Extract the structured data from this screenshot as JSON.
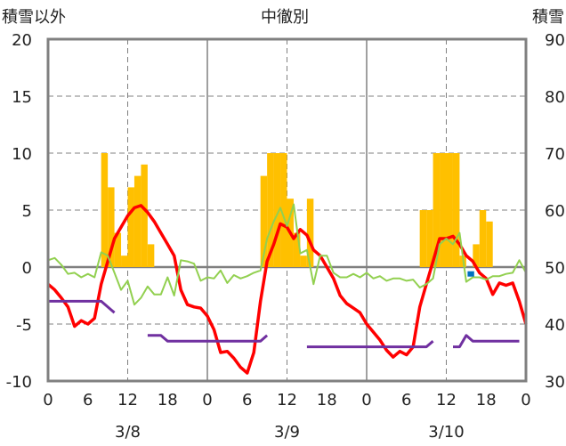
{
  "chart_data": {
    "type": "bar",
    "header": {
      "left": "積雪以外",
      "center": "中徹別",
      "right": "積雪"
    },
    "y_left": {
      "min": -10,
      "max": 20,
      "ticks": [
        "-10",
        "-5",
        "0",
        "5",
        "10",
        "15",
        "20"
      ]
    },
    "y_right": {
      "min": 30,
      "max": 90,
      "ticks": [
        "30",
        "40",
        "50",
        "60",
        "70",
        "80",
        "90"
      ]
    },
    "x_range": [
      0,
      72
    ],
    "x_ticks": [
      "0",
      "6",
      "12",
      "18",
      "0",
      "6",
      "12",
      "18",
      "0",
      "6",
      "12",
      "18",
      "0"
    ],
    "dates": [
      "3/8",
      "3/9",
      "3/10"
    ],
    "colors": {
      "bars": "#ffc000",
      "red": "#ff0000",
      "green": "#92d050",
      "purple": "#7030a0",
      "blue": "#0070c0",
      "zero": "#808080"
    },
    "bars": [
      {
        "x": 8.5,
        "y": 10
      },
      {
        "x": 9.5,
        "y": 7
      },
      {
        "x": 10.5,
        "y": 3
      },
      {
        "x": 11.5,
        "y": 1
      },
      {
        "x": 12.5,
        "y": 7
      },
      {
        "x": 13.5,
        "y": 8
      },
      {
        "x": 14.5,
        "y": 9
      },
      {
        "x": 15.5,
        "y": 2
      },
      {
        "x": 32.5,
        "y": 8
      },
      {
        "x": 33.5,
        "y": 10
      },
      {
        "x": 34.5,
        "y": 10
      },
      {
        "x": 35.5,
        "y": 10
      },
      {
        "x": 36.5,
        "y": 6
      },
      {
        "x": 37.5,
        "y": 3
      },
      {
        "x": 38.5,
        "y": 1
      },
      {
        "x": 39.5,
        "y": 6
      },
      {
        "x": 56.5,
        "y": 5
      },
      {
        "x": 57.5,
        "y": 5
      },
      {
        "x": 58.5,
        "y": 10
      },
      {
        "x": 59.5,
        "y": 10
      },
      {
        "x": 60.5,
        "y": 10
      },
      {
        "x": 61.5,
        "y": 10
      },
      {
        "x": 62.5,
        "y": 1
      },
      {
        "x": 64.5,
        "y": 2
      },
      {
        "x": 65.5,
        "y": 5
      },
      {
        "x": 66.5,
        "y": 4
      }
    ],
    "series": [
      {
        "color": "red",
        "points": [
          [
            0,
            -1.5
          ],
          [
            1,
            -2
          ],
          [
            2,
            -2.7
          ],
          [
            3,
            -3.5
          ],
          [
            4,
            -5.2
          ],
          [
            5,
            -4.7
          ],
          [
            6,
            -5
          ],
          [
            7,
            -4.5
          ],
          [
            8,
            -1.5
          ],
          [
            9,
            0.5
          ],
          [
            10,
            2.5
          ],
          [
            11,
            3.5
          ],
          [
            12,
            4.5
          ],
          [
            13,
            5.2
          ],
          [
            14,
            5.4
          ],
          [
            15,
            4.8
          ],
          [
            16,
            4
          ],
          [
            17,
            3
          ],
          [
            18,
            2
          ],
          [
            19,
            1
          ],
          [
            20,
            -2
          ],
          [
            21,
            -3.3
          ],
          [
            22,
            -3.5
          ],
          [
            23,
            -3.6
          ],
          [
            24,
            -4.3
          ],
          [
            25,
            -5.5
          ],
          [
            26,
            -7.5
          ],
          [
            27,
            -7.4
          ],
          [
            28,
            -8
          ],
          [
            29,
            -8.8
          ],
          [
            30,
            -9.3
          ],
          [
            31,
            -7.5
          ],
          [
            32,
            -3
          ],
          [
            33,
            0.5
          ],
          [
            34,
            2
          ],
          [
            35,
            3.8
          ],
          [
            36,
            3.5
          ],
          [
            37,
            2.5
          ],
          [
            38,
            3.3
          ],
          [
            39,
            2.8
          ],
          [
            40,
            1.5
          ],
          [
            41,
            1
          ],
          [
            42,
            0
          ],
          [
            43,
            -1
          ],
          [
            44,
            -2.5
          ],
          [
            45,
            -3.2
          ],
          [
            46,
            -3.6
          ],
          [
            47,
            -4
          ],
          [
            48,
            -5
          ],
          [
            49,
            -5.7
          ],
          [
            50,
            -6.4
          ],
          [
            51,
            -7.3
          ],
          [
            52,
            -7.9
          ],
          [
            53,
            -7.4
          ],
          [
            54,
            -7.7
          ],
          [
            55,
            -7
          ],
          [
            56,
            -3.5
          ],
          [
            57,
            -1.5
          ],
          [
            58,
            0.5
          ],
          [
            59,
            2.5
          ],
          [
            60,
            2.5
          ],
          [
            61,
            2.7
          ],
          [
            62,
            2
          ],
          [
            63,
            1
          ],
          [
            64,
            0.5
          ],
          [
            65,
            -0.5
          ],
          [
            66,
            -1
          ],
          [
            67,
            -2.4
          ],
          [
            68,
            -1.4
          ],
          [
            69,
            -1.6
          ],
          [
            70,
            -1.4
          ],
          [
            71,
            -3
          ],
          [
            72,
            -5
          ]
        ]
      },
      {
        "color": "green",
        "points": [
          [
            0,
            0.6
          ],
          [
            1,
            0.8
          ],
          [
            2,
            0.2
          ],
          [
            3,
            -0.6
          ],
          [
            4,
            -0.5
          ],
          [
            5,
            -0.9
          ],
          [
            6,
            -0.6
          ],
          [
            7,
            -0.9
          ],
          [
            8,
            1.3
          ],
          [
            9,
            1
          ],
          [
            10,
            -0.5
          ],
          [
            11,
            -2
          ],
          [
            12,
            -1.2
          ],
          [
            13,
            -3.3
          ],
          [
            14,
            -2.7
          ],
          [
            15,
            -1.7
          ],
          [
            16,
            -2.4
          ],
          [
            17,
            -2.4
          ],
          [
            18,
            -0.9
          ],
          [
            19,
            -2.5
          ],
          [
            20,
            0.6
          ],
          [
            21,
            0.5
          ],
          [
            22,
            0.3
          ],
          [
            23,
            -1.2
          ],
          [
            24,
            -0.9
          ],
          [
            25,
            -1
          ],
          [
            26,
            -0.3
          ],
          [
            27,
            -1.4
          ],
          [
            28,
            -0.7
          ],
          [
            29,
            -1
          ],
          [
            30,
            -0.8
          ],
          [
            31,
            -0.5
          ],
          [
            32,
            -0.3
          ],
          [
            33,
            2.5
          ],
          [
            34,
            4
          ],
          [
            35,
            5.2
          ],
          [
            36,
            3.6
          ],
          [
            37,
            5.5
          ],
          [
            38,
            1.2
          ],
          [
            39,
            1.5
          ],
          [
            40,
            -1.5
          ],
          [
            41,
            1
          ],
          [
            42,
            1
          ],
          [
            43,
            -0.5
          ],
          [
            44,
            -0.9
          ],
          [
            45,
            -0.9
          ],
          [
            46,
            -0.6
          ],
          [
            47,
            -0.9
          ],
          [
            48,
            -0.5
          ],
          [
            49,
            -1
          ],
          [
            50,
            -0.8
          ],
          [
            51,
            -1.2
          ],
          [
            52,
            -1
          ],
          [
            53,
            -1
          ],
          [
            54,
            -1.2
          ],
          [
            55,
            -1.1
          ],
          [
            56,
            -1.8
          ],
          [
            57,
            -1.5
          ],
          [
            58,
            -1
          ],
          [
            59,
            2
          ],
          [
            60,
            2.5
          ],
          [
            61,
            2
          ],
          [
            62,
            3
          ],
          [
            63,
            -1.3
          ],
          [
            64,
            -0.9
          ],
          [
            65,
            -0.9
          ],
          [
            66,
            -1.1
          ],
          [
            67,
            -0.8
          ],
          [
            68,
            -0.8
          ],
          [
            69,
            -0.6
          ],
          [
            70,
            -0.5
          ],
          [
            71,
            0.6
          ],
          [
            72,
            -0.5
          ]
        ]
      },
      {
        "color": "purple",
        "points": [
          [
            0,
            -3
          ],
          [
            8,
            -3
          ],
          [
            10,
            -4
          ]
        ]
      },
      {
        "color": "purple",
        "points": [
          [
            15,
            -6
          ],
          [
            17,
            -6
          ],
          [
            18,
            -6.5
          ],
          [
            32,
            -6.5
          ],
          [
            33,
            -6
          ]
        ]
      },
      {
        "color": "purple",
        "points": [
          [
            39,
            -7
          ],
          [
            57,
            -7
          ],
          [
            58,
            -6.5
          ]
        ]
      },
      {
        "color": "purple",
        "points": [
          [
            61,
            -7
          ],
          [
            62,
            -7
          ],
          [
            63,
            -6
          ],
          [
            64,
            -6.5
          ],
          [
            71,
            -6.5
          ]
        ]
      },
      {
        "color": "blue",
        "points": [
          [
            63.2,
            -0.6
          ],
          [
            64.2,
            -0.6
          ]
        ]
      }
    ]
  }
}
